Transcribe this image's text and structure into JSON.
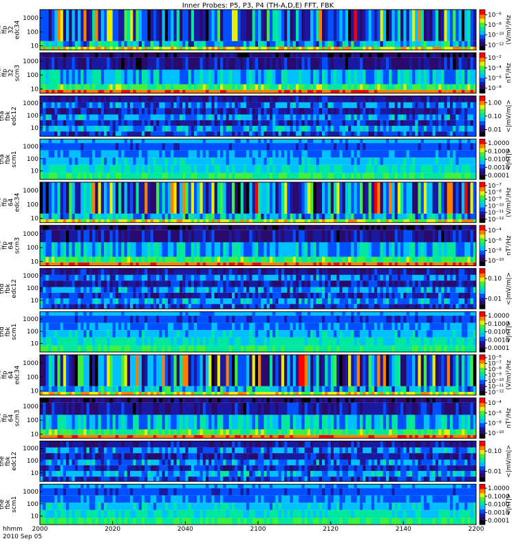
{
  "figure": {
    "title": "Inner Probes: P5, P3, P4 (TH-A,D,E) FFT, FBK",
    "time_label": "hhmm",
    "date_label": "2010 Sep 05"
  },
  "chart_data": {
    "type": "heatmap",
    "x_ticks": [
      "2000",
      "2020",
      "2040",
      "2100",
      "2120",
      "2140",
      "2200"
    ],
    "x_range": [
      "2000",
      "2200"
    ],
    "x_units": "hhmm",
    "panels": [
      {
        "label": [
          "tha",
          "ffp",
          "32",
          "edc34"
        ],
        "y_ticks": [
          "1000",
          "100",
          "10"
        ],
        "y_range": [
          5,
          4000
        ],
        "y_scale": "log",
        "colorbar_ticks": [
          "10⁻⁶",
          "10⁻⁸",
          "10⁻¹⁰",
          "10⁻¹²"
        ],
        "colorbar_label": "(V/m)²/Hz",
        "pattern": "efield_ffp"
      },
      {
        "label": [
          "tha",
          "ffp",
          "32",
          "scm3"
        ],
        "y_ticks": [
          "1000",
          "100",
          "10"
        ],
        "y_range": [
          5,
          4000
        ],
        "y_scale": "log",
        "colorbar_ticks": [
          "10⁻²",
          "10⁻⁴",
          "10⁻⁶",
          "10⁻⁸"
        ],
        "colorbar_label": "nT²/Hz",
        "pattern": "bfield_ffp"
      },
      {
        "label": [
          "tha",
          "fbk",
          "edc12"
        ],
        "y_ticks": [
          "1000",
          "100",
          "10"
        ],
        "y_range": [
          2,
          4000
        ],
        "y_scale": "log",
        "colorbar_ticks": [
          "1.00",
          "0.10",
          "0.01"
        ],
        "colorbar_label": "<|mV/m|>",
        "pattern": "efield_fbk"
      },
      {
        "label": [
          "tha",
          "fbk",
          "scm1"
        ],
        "y_ticks": [
          "1000",
          "100",
          "10"
        ],
        "y_range": [
          2,
          4000
        ],
        "y_scale": "log",
        "colorbar_ticks": [
          "1.0000",
          "0.1000",
          "0.0100",
          "0.0010",
          "0.0001"
        ],
        "colorbar_label": "<|nT|>",
        "pattern": "bfield_fbk"
      },
      {
        "label": [
          "thd",
          "ffp",
          "64",
          "edc34"
        ],
        "y_ticks": [
          "1000",
          "100",
          "10"
        ],
        "y_range": [
          5,
          4000
        ],
        "y_scale": "log",
        "colorbar_ticks": [
          "10⁻⁷",
          "10⁻⁸",
          "10⁻⁹",
          "10⁻¹⁰",
          "10⁻¹¹",
          "10⁻¹²"
        ],
        "colorbar_label": "(V/m)²/Hz",
        "pattern": "efield_ffp"
      },
      {
        "label": [
          "thd",
          "ffp",
          "64",
          "scm3"
        ],
        "y_ticks": [
          "1000",
          "100",
          "10"
        ],
        "y_range": [
          5,
          4000
        ],
        "y_scale": "log",
        "colorbar_ticks": [
          "10⁻⁴",
          "10⁻⁶",
          "10⁻⁸",
          "10⁻¹⁰"
        ],
        "colorbar_label": "nT²/Hz",
        "pattern": "bfield_ffp"
      },
      {
        "label": [
          "thd",
          "fbk",
          "edc12"
        ],
        "y_ticks": [
          "1000",
          "100",
          "10"
        ],
        "y_range": [
          2,
          4000
        ],
        "y_scale": "log",
        "colorbar_ticks": [
          "0.10",
          "0.01"
        ],
        "colorbar_label": "<|mV/m|>",
        "pattern": "efield_fbk"
      },
      {
        "label": [
          "thd",
          "fbk",
          "scm1"
        ],
        "y_ticks": [
          "1000",
          "100",
          "10"
        ],
        "y_range": [
          2,
          4000
        ],
        "y_scale": "log",
        "colorbar_ticks": [
          "1.0000",
          "0.1000",
          "0.0100",
          "0.0010",
          "0.0001"
        ],
        "colorbar_label": "<|nT|>",
        "pattern": "bfield_fbk"
      },
      {
        "label": [
          "the",
          "ffp",
          "64",
          "edc34"
        ],
        "y_ticks": [
          "1000",
          "100",
          "10"
        ],
        "y_range": [
          5,
          4000
        ],
        "y_scale": "log",
        "colorbar_ticks": [
          "10⁻⁶",
          "10⁻⁷",
          "10⁻⁸",
          "10⁻⁹",
          "10⁻¹⁰",
          "10⁻¹¹",
          "10⁻¹²"
        ],
        "colorbar_label": "(V/m)²/Hz",
        "pattern": "efield_ffp"
      },
      {
        "label": [
          "the",
          "ffp",
          "64",
          "scm3"
        ],
        "y_ticks": [
          "1000",
          "100",
          "10"
        ],
        "y_range": [
          5,
          4000
        ],
        "y_scale": "log",
        "colorbar_ticks": [
          "10⁻⁴",
          "10⁻⁶",
          "10⁻⁸",
          "10⁻¹⁰"
        ],
        "colorbar_label": "nT²/Hz",
        "pattern": "bfield_ffp"
      },
      {
        "label": [
          "the",
          "fbk",
          "edc12"
        ],
        "y_ticks": [
          "1000",
          "100",
          "10"
        ],
        "y_range": [
          2,
          4000
        ],
        "y_scale": "log",
        "colorbar_ticks": [
          "0.10",
          "0.01"
        ],
        "colorbar_label": "<|mV/m|>",
        "pattern": "efield_fbk"
      },
      {
        "label": [
          "the",
          "fbk",
          "scm1"
        ],
        "y_ticks": [
          "1000",
          "100",
          "10"
        ],
        "y_range": [
          2,
          4000
        ],
        "y_scale": "log",
        "colorbar_ticks": [
          "1.0000",
          "0.1000",
          "0.0100",
          "0.0010",
          "0.0001"
        ],
        "colorbar_label": "<|nT|>",
        "pattern": "bfield_fbk"
      }
    ],
    "grid": false,
    "colormap": [
      "#000000",
      "#2a0a6a",
      "#1a1aa0",
      "#0050ff",
      "#00c0ff",
      "#00e8a0",
      "#40f040",
      "#e8f000",
      "#ff8000",
      "#ff0000"
    ]
  }
}
